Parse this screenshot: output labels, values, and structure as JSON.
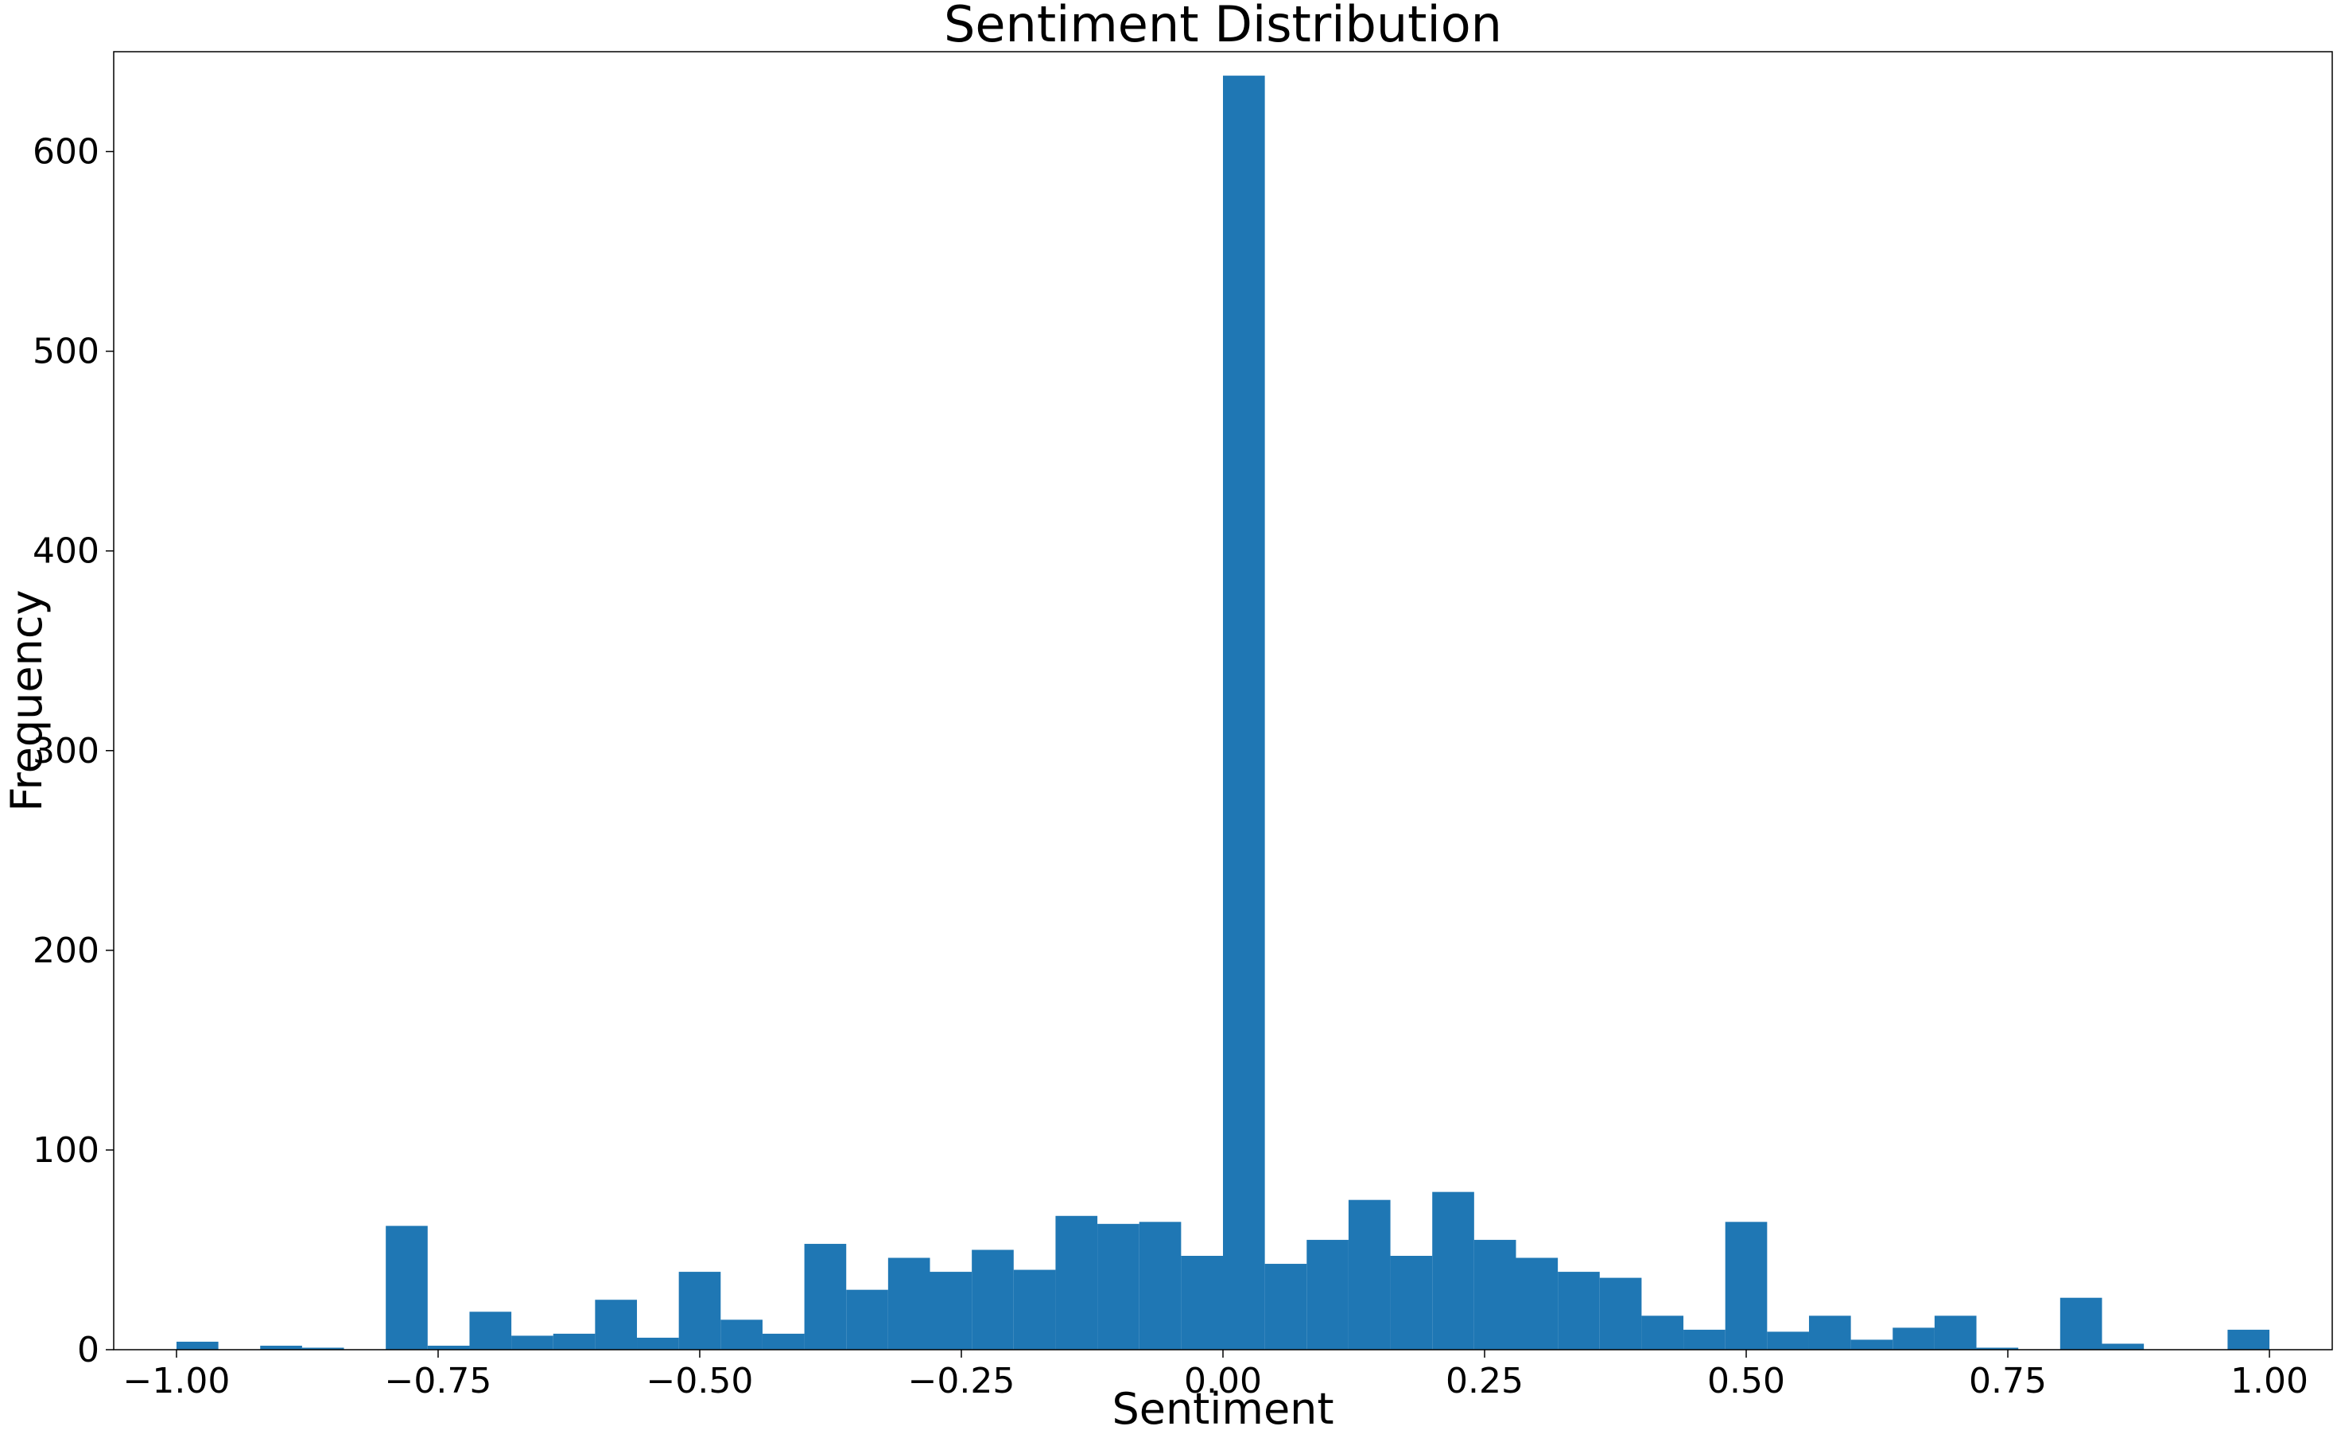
{
  "chart_data": {
    "type": "bar",
    "title": "Sentiment Distribution",
    "xlabel": "Sentiment",
    "ylabel": "Frequency",
    "xlim": [
      -1.06,
      1.06
    ],
    "ylim": [
      0,
      650
    ],
    "bin_width": 0.04,
    "bins": [
      {
        "x0": -1.0,
        "value": 4
      },
      {
        "x0": -0.96,
        "value": 0
      },
      {
        "x0": -0.92,
        "value": 2
      },
      {
        "x0": -0.88,
        "value": 1
      },
      {
        "x0": -0.84,
        "value": 0
      },
      {
        "x0": -0.8,
        "value": 62
      },
      {
        "x0": -0.76,
        "value": 2
      },
      {
        "x0": -0.72,
        "value": 19
      },
      {
        "x0": -0.68,
        "value": 7
      },
      {
        "x0": -0.64,
        "value": 8
      },
      {
        "x0": -0.6,
        "value": 25
      },
      {
        "x0": -0.56,
        "value": 6
      },
      {
        "x0": -0.52,
        "value": 39
      },
      {
        "x0": -0.48,
        "value": 15
      },
      {
        "x0": -0.44,
        "value": 8
      },
      {
        "x0": -0.4,
        "value": 53
      },
      {
        "x0": -0.36,
        "value": 30
      },
      {
        "x0": -0.32,
        "value": 46
      },
      {
        "x0": -0.28,
        "value": 39
      },
      {
        "x0": -0.24,
        "value": 50
      },
      {
        "x0": -0.2,
        "value": 40
      },
      {
        "x0": -0.16,
        "value": 67
      },
      {
        "x0": -0.12,
        "value": 63
      },
      {
        "x0": -0.08,
        "value": 64
      },
      {
        "x0": -0.04,
        "value": 47
      },
      {
        "x0": 0.0,
        "value": 638
      },
      {
        "x0": 0.04,
        "value": 43
      },
      {
        "x0": 0.08,
        "value": 55
      },
      {
        "x0": 0.12,
        "value": 75
      },
      {
        "x0": 0.16,
        "value": 47
      },
      {
        "x0": 0.2,
        "value": 79
      },
      {
        "x0": 0.24,
        "value": 55
      },
      {
        "x0": 0.28,
        "value": 46
      },
      {
        "x0": 0.32,
        "value": 39
      },
      {
        "x0": 0.36,
        "value": 36
      },
      {
        "x0": 0.4,
        "value": 17
      },
      {
        "x0": 0.44,
        "value": 10
      },
      {
        "x0": 0.48,
        "value": 64
      },
      {
        "x0": 0.52,
        "value": 9
      },
      {
        "x0": 0.56,
        "value": 17
      },
      {
        "x0": 0.6,
        "value": 5
      },
      {
        "x0": 0.64,
        "value": 11
      },
      {
        "x0": 0.68,
        "value": 17
      },
      {
        "x0": 0.72,
        "value": 1
      },
      {
        "x0": 0.76,
        "value": 0
      },
      {
        "x0": 0.8,
        "value": 26
      },
      {
        "x0": 0.84,
        "value": 3
      },
      {
        "x0": 0.88,
        "value": 0
      },
      {
        "x0": 0.92,
        "value": 0
      },
      {
        "x0": 0.96,
        "value": 10
      }
    ],
    "x_ticks": [
      {
        "value": -1.0,
        "label": "−1.00"
      },
      {
        "value": -0.75,
        "label": "−0.75"
      },
      {
        "value": -0.5,
        "label": "−0.50"
      },
      {
        "value": -0.25,
        "label": "−0.25"
      },
      {
        "value": 0.0,
        "label": "0.00"
      },
      {
        "value": 0.25,
        "label": "0.25"
      },
      {
        "value": 0.5,
        "label": "0.50"
      },
      {
        "value": 0.75,
        "label": "0.75"
      },
      {
        "value": 1.0,
        "label": "1.00"
      }
    ],
    "y_ticks": [
      {
        "value": 0,
        "label": "0"
      },
      {
        "value": 100,
        "label": "100"
      },
      {
        "value": 200,
        "label": "200"
      },
      {
        "value": 300,
        "label": "300"
      },
      {
        "value": 400,
        "label": "400"
      },
      {
        "value": 500,
        "label": "500"
      },
      {
        "value": 600,
        "label": "600"
      }
    ],
    "grid": false,
    "bar_color": "#1f77b4"
  }
}
